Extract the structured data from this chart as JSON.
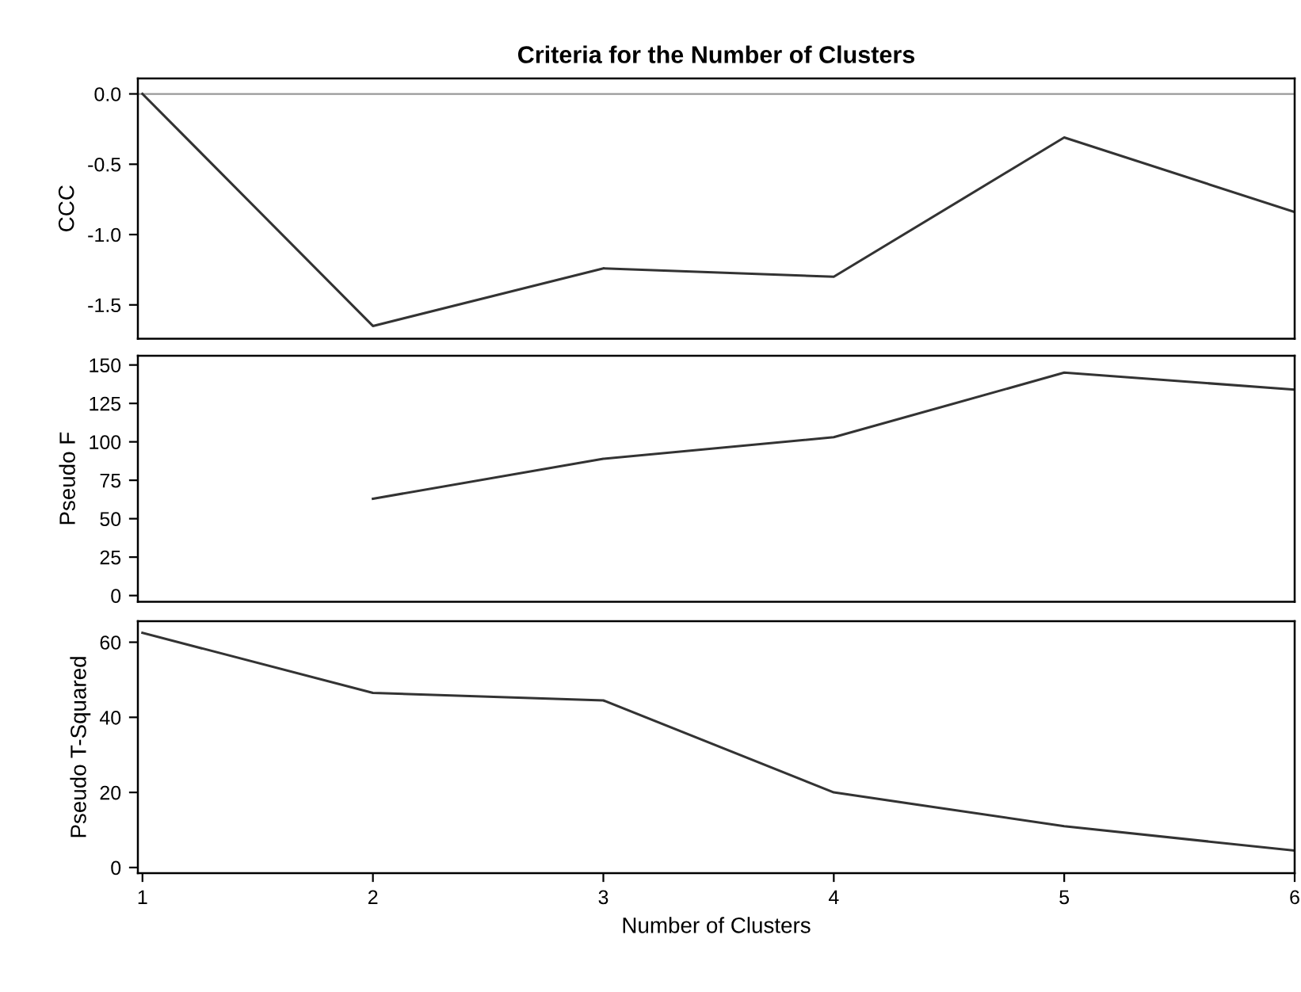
{
  "chart_data": [
    {
      "type": "line",
      "title": "Criteria for the Number of Clusters",
      "ylabel": "CCC",
      "x": [
        1,
        2,
        3,
        4,
        5,
        6
      ],
      "series": [
        {
          "color": "#333333",
          "values": [
            0.0,
            -1.65,
            -1.24,
            -1.3,
            -0.31,
            -0.84
          ]
        }
      ],
      "xlim": [
        0.98,
        6.0
      ],
      "ylim": [
        -1.74,
        0.11
      ],
      "xticks": [
        1,
        2,
        3,
        4,
        5,
        6
      ],
      "yticks": [
        {
          "value": 0,
          "label": "0.0"
        },
        {
          "value": -0.5,
          "label": "-0.5"
        },
        {
          "value": -1.0,
          "label": "-1.0"
        },
        {
          "value": -1.5,
          "label": "-1.5"
        }
      ],
      "ref_lines": [
        {
          "axis": "y",
          "value": 0,
          "color": "#999999"
        }
      ],
      "tick_labels": "y",
      "grid": false
    },
    {
      "type": "line",
      "ylabel": "Pseudo F",
      "series": [
        {
          "color": "#333333",
          "x": [
            2,
            3,
            4,
            5,
            6
          ],
          "values": [
            63,
            89,
            103,
            145,
            134
          ]
        }
      ],
      "xlim": [
        0.98,
        6.0
      ],
      "ylim": [
        -4,
        156
      ],
      "xticks": [
        1,
        2,
        3,
        4,
        5,
        6
      ],
      "yticks": [
        0,
        25,
        50,
        75,
        100,
        125,
        150
      ],
      "tick_labels": "y",
      "grid": false
    },
    {
      "type": "line",
      "ylabel": "Pseudo T-Squared",
      "xlabel": "Number of Clusters",
      "x": [
        1,
        2,
        3,
        4,
        5,
        6
      ],
      "series": [
        {
          "color": "#333333",
          "values": [
            62.5,
            46.5,
            44.5,
            20,
            11,
            4.5
          ]
        }
      ],
      "xlim": [
        0.98,
        6.0
      ],
      "ylim": [
        -1.5,
        65.6
      ],
      "xticks": [
        1,
        2,
        3,
        4,
        5,
        6
      ],
      "yticks": [
        0,
        20,
        40,
        60
      ],
      "grid": false
    }
  ]
}
